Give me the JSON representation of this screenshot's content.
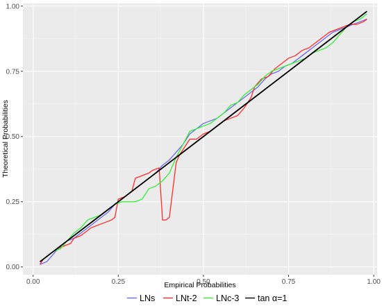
{
  "chart_data": {
    "type": "line",
    "title": "",
    "xlabel": "Empirical Probabilities",
    "ylabel": "Theoretical Probabilities",
    "xlim": [
      -0.03,
      1.01
    ],
    "ylim": [
      -0.03,
      1.01
    ],
    "x_ticks": [
      0.0,
      0.25,
      0.5,
      0.75,
      1.0
    ],
    "y_ticks": [
      0.0,
      0.25,
      0.5,
      0.75,
      1.0
    ],
    "x_tick_labels": [
      "0.00",
      "0.25",
      "0.50",
      "0.75",
      "1.00"
    ],
    "y_tick_labels": [
      "0.00",
      "0.25",
      "0.50",
      "0.75",
      "1.00"
    ],
    "grid": true,
    "legend_position": "bottom",
    "series": [
      {
        "name": "LNs",
        "color": "#6a6af2",
        "points": [
          [
            0.02,
            0.01
          ],
          [
            0.04,
            0.02
          ],
          [
            0.06,
            0.05
          ],
          [
            0.08,
            0.08
          ],
          [
            0.1,
            0.1
          ],
          [
            0.12,
            0.11
          ],
          [
            0.14,
            0.13
          ],
          [
            0.16,
            0.15
          ],
          [
            0.18,
            0.17
          ],
          [
            0.2,
            0.19
          ],
          [
            0.22,
            0.21
          ],
          [
            0.24,
            0.24
          ],
          [
            0.26,
            0.26
          ],
          [
            0.28,
            0.28
          ],
          [
            0.3,
            0.3
          ],
          [
            0.32,
            0.32
          ],
          [
            0.34,
            0.34
          ],
          [
            0.36,
            0.36
          ],
          [
            0.38,
            0.39
          ],
          [
            0.4,
            0.41
          ],
          [
            0.42,
            0.44
          ],
          [
            0.44,
            0.47
          ],
          [
            0.46,
            0.51
          ],
          [
            0.48,
            0.53
          ],
          [
            0.5,
            0.55
          ],
          [
            0.52,
            0.56
          ],
          [
            0.54,
            0.57
          ],
          [
            0.56,
            0.59
          ],
          [
            0.58,
            0.61
          ],
          [
            0.6,
            0.63
          ],
          [
            0.62,
            0.65
          ],
          [
            0.64,
            0.67
          ],
          [
            0.66,
            0.69
          ],
          [
            0.68,
            0.72
          ],
          [
            0.7,
            0.74
          ],
          [
            0.72,
            0.75
          ],
          [
            0.74,
            0.77
          ],
          [
            0.76,
            0.78
          ],
          [
            0.78,
            0.8
          ],
          [
            0.8,
            0.82
          ],
          [
            0.82,
            0.84
          ],
          [
            0.84,
            0.86
          ],
          [
            0.86,
            0.88
          ],
          [
            0.88,
            0.9
          ],
          [
            0.9,
            0.91
          ],
          [
            0.92,
            0.92
          ],
          [
            0.94,
            0.93
          ],
          [
            0.96,
            0.94
          ],
          [
            0.98,
            0.95
          ]
        ]
      },
      {
        "name": "LNt-2",
        "color": "#ff2a2a",
        "points": [
          [
            0.02,
            0.01
          ],
          [
            0.03,
            0.03
          ],
          [
            0.05,
            0.05
          ],
          [
            0.07,
            0.07
          ],
          [
            0.09,
            0.08
          ],
          [
            0.11,
            0.09
          ],
          [
            0.12,
            0.11
          ],
          [
            0.14,
            0.12
          ],
          [
            0.16,
            0.14
          ],
          [
            0.17,
            0.15
          ],
          [
            0.19,
            0.16
          ],
          [
            0.21,
            0.17
          ],
          [
            0.23,
            0.18
          ],
          [
            0.24,
            0.19
          ],
          [
            0.25,
            0.26
          ],
          [
            0.27,
            0.27
          ],
          [
            0.29,
            0.29
          ],
          [
            0.3,
            0.34
          ],
          [
            0.32,
            0.35
          ],
          [
            0.34,
            0.36
          ],
          [
            0.35,
            0.37
          ],
          [
            0.37,
            0.38
          ],
          [
            0.38,
            0.18
          ],
          [
            0.39,
            0.18
          ],
          [
            0.4,
            0.19
          ],
          [
            0.42,
            0.4
          ],
          [
            0.43,
            0.43
          ],
          [
            0.45,
            0.47
          ],
          [
            0.46,
            0.49
          ],
          [
            0.48,
            0.49
          ],
          [
            0.5,
            0.51
          ],
          [
            0.52,
            0.52
          ],
          [
            0.54,
            0.54
          ],
          [
            0.56,
            0.56
          ],
          [
            0.58,
            0.57
          ],
          [
            0.6,
            0.58
          ],
          [
            0.62,
            0.61
          ],
          [
            0.64,
            0.65
          ],
          [
            0.65,
            0.69
          ],
          [
            0.67,
            0.72
          ],
          [
            0.69,
            0.73
          ],
          [
            0.71,
            0.76
          ],
          [
            0.73,
            0.78
          ],
          [
            0.75,
            0.8
          ],
          [
            0.77,
            0.81
          ],
          [
            0.79,
            0.83
          ],
          [
            0.81,
            0.84
          ],
          [
            0.83,
            0.86
          ],
          [
            0.85,
            0.88
          ],
          [
            0.87,
            0.9
          ],
          [
            0.89,
            0.91
          ],
          [
            0.91,
            0.92
          ],
          [
            0.93,
            0.93
          ],
          [
            0.95,
            0.93
          ],
          [
            0.97,
            0.94
          ],
          [
            0.98,
            0.95
          ]
        ]
      },
      {
        "name": "LNc-3",
        "color": "#33ee33",
        "points": [
          [
            0.02,
            0.02
          ],
          [
            0.04,
            0.04
          ],
          [
            0.06,
            0.06
          ],
          [
            0.08,
            0.07
          ],
          [
            0.1,
            0.1
          ],
          [
            0.12,
            0.13
          ],
          [
            0.14,
            0.15
          ],
          [
            0.16,
            0.18
          ],
          [
            0.18,
            0.19
          ],
          [
            0.2,
            0.2
          ],
          [
            0.22,
            0.22
          ],
          [
            0.24,
            0.24
          ],
          [
            0.26,
            0.25
          ],
          [
            0.28,
            0.25
          ],
          [
            0.3,
            0.25
          ],
          [
            0.32,
            0.26
          ],
          [
            0.34,
            0.3
          ],
          [
            0.36,
            0.31
          ],
          [
            0.38,
            0.33
          ],
          [
            0.4,
            0.36
          ],
          [
            0.42,
            0.42
          ],
          [
            0.44,
            0.47
          ],
          [
            0.46,
            0.52
          ],
          [
            0.48,
            0.53
          ],
          [
            0.5,
            0.54
          ],
          [
            0.52,
            0.55
          ],
          [
            0.54,
            0.57
          ],
          [
            0.56,
            0.59
          ],
          [
            0.58,
            0.62
          ],
          [
            0.6,
            0.63
          ],
          [
            0.62,
            0.66
          ],
          [
            0.64,
            0.68
          ],
          [
            0.66,
            0.7
          ],
          [
            0.68,
            0.73
          ],
          [
            0.7,
            0.75
          ],
          [
            0.72,
            0.76
          ],
          [
            0.74,
            0.77
          ],
          [
            0.76,
            0.78
          ],
          [
            0.78,
            0.79
          ],
          [
            0.8,
            0.8
          ],
          [
            0.82,
            0.82
          ],
          [
            0.84,
            0.83
          ],
          [
            0.86,
            0.84
          ],
          [
            0.88,
            0.86
          ],
          [
            0.9,
            0.89
          ],
          [
            0.92,
            0.92
          ],
          [
            0.94,
            0.94
          ],
          [
            0.96,
            0.95
          ],
          [
            0.98,
            0.97
          ]
        ]
      },
      {
        "name": "tan α=1",
        "color": "#000000",
        "points": [
          [
            0.02,
            0.02
          ],
          [
            0.98,
            0.98
          ]
        ]
      }
    ]
  }
}
